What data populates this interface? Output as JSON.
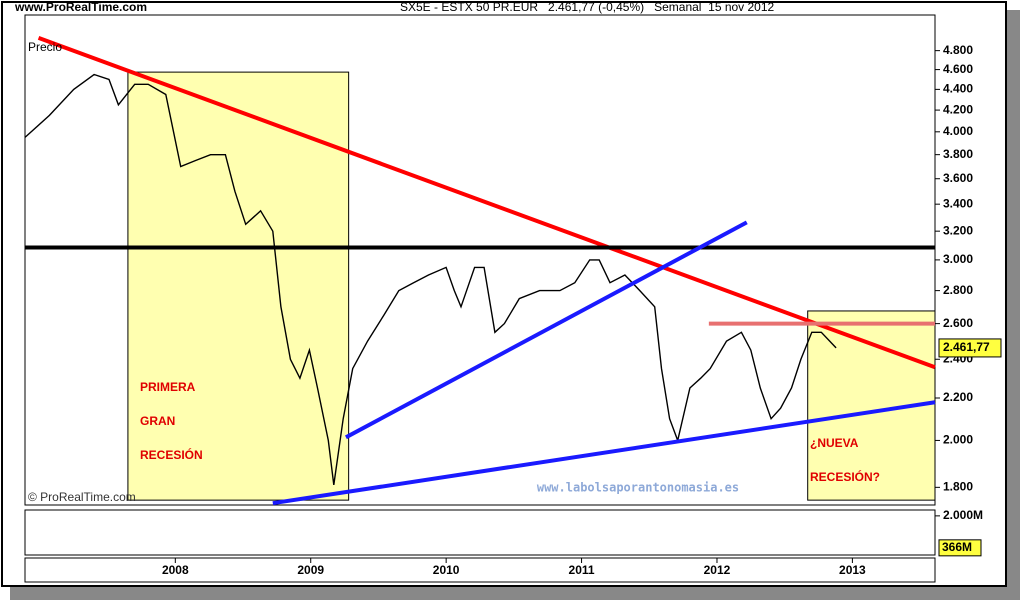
{
  "chart_data": {
    "type": "line",
    "source": "www.ProRealTime.com",
    "title": "SX5E - ESTX 50 PR.EUR   2.461,77 (-0,45%)   Semanal  15 nov 2012",
    "y_label": "Precio",
    "copyright": "© ProRealTime.com",
    "watermark": "www.labolsaporantonomasia.es",
    "log_scale": true,
    "xlim": [
      2006.89,
      2013.61
    ],
    "xticks": [
      2008,
      2009,
      2010,
      2011,
      2012,
      2013
    ],
    "ylim": [
      1730,
      5200
    ],
    "yticks": [
      {
        "value": 1800,
        "label": "1.800"
      },
      {
        "value": 2000,
        "label": "2.000"
      },
      {
        "value": 2200,
        "label": "2.200"
      },
      {
        "value": 2400,
        "label": "2.400"
      },
      {
        "value": 2600,
        "label": "2.600"
      },
      {
        "value": 2800,
        "label": "2.800"
      },
      {
        "value": 3000,
        "label": "3.000"
      },
      {
        "value": 3200,
        "label": "3.200"
      },
      {
        "value": 3400,
        "label": "3.400"
      },
      {
        "value": 3600,
        "label": "3.600"
      },
      {
        "value": 3800,
        "label": "3.800"
      },
      {
        "value": 4000,
        "label": "4.000"
      },
      {
        "value": 4200,
        "label": "4.200"
      },
      {
        "value": 4400,
        "label": "4.400"
      },
      {
        "value": 4600,
        "label": "4.600"
      },
      {
        "value": 4800,
        "label": "4.800"
      }
    ],
    "series": [
      {
        "name": "SX5E",
        "color": "#000000",
        "x": [
          2006.89,
          2007.07,
          2007.25,
          2007.4,
          2007.51,
          2007.58,
          2007.7,
          2007.8,
          2007.93,
          2008.04,
          2008.15,
          2008.26,
          2008.37,
          2008.44,
          2008.52,
          2008.63,
          2008.72,
          2008.78,
          2008.85,
          2008.92,
          2008.99,
          2009.05,
          2009.13,
          2009.17,
          2009.24,
          2009.31,
          2009.42,
          2009.54,
          2009.65,
          2009.76,
          2009.87,
          2010.0,
          2010.06,
          2010.11,
          2010.21,
          2010.28,
          2010.36,
          2010.43,
          2010.54,
          2010.69,
          2010.84,
          2010.95,
          2011.06,
          2011.13,
          2011.21,
          2011.32,
          2011.43,
          2011.54,
          2011.59,
          2011.65,
          2011.71,
          2011.8,
          2011.88,
          2011.95,
          2012.07,
          2012.18,
          2012.25,
          2012.32,
          2012.4,
          2012.47,
          2012.55,
          2012.62,
          2012.7,
          2012.77,
          2012.88
        ],
        "values": [
          3950,
          4150,
          4400,
          4550,
          4500,
          4250,
          4450,
          4450,
          4350,
          3700,
          3750,
          3800,
          3800,
          3500,
          3250,
          3350,
          3200,
          2700,
          2400,
          2300,
          2450,
          2250,
          2000,
          1810,
          2100,
          2350,
          2500,
          2650,
          2800,
          2850,
          2900,
          2950,
          2800,
          2700,
          2950,
          2950,
          2550,
          2600,
          2750,
          2800,
          2800,
          2850,
          3000,
          3000,
          2850,
          2900,
          2800,
          2700,
          2350,
          2100,
          2000,
          2250,
          2300,
          2350,
          2500,
          2550,
          2450,
          2250,
          2100,
          2150,
          2250,
          2400,
          2550,
          2550,
          2462
        ]
      }
    ],
    "last_price": {
      "value": 2461.77,
      "label": "2.461,77"
    },
    "zones": [
      {
        "color": "#ffffb0",
        "x": [
          2007.65,
          2009.28
        ],
        "y": [
          1749,
          4574
        ],
        "label": [
          "PRIMERA",
          "GRAN",
          "RECESIÓN"
        ]
      },
      {
        "color": "#ffffb0",
        "x": [
          2012.67,
          2013.61
        ],
        "y": [
          1749,
          2675
        ],
        "label": [
          "¿NUEVA",
          "RECESIÓN?"
        ]
      }
    ],
    "trendlines": [
      {
        "color": "#ff0000",
        "x": [
          2006.99,
          2013.61
        ],
        "y": [
          4940,
          2357
        ]
      },
      {
        "color": "#000000",
        "x": [
          2006.89,
          2013.61
        ],
        "y": [
          3085,
          3085
        ]
      },
      {
        "color": "#1a1aff",
        "x": [
          2009.26,
          2012.22
        ],
        "y": [
          2014,
          3264
        ]
      },
      {
        "color": "#1a1aff",
        "x": [
          2008.72,
          2013.61
        ],
        "y": [
          1737,
          2179
        ]
      },
      {
        "color": "#e87070",
        "x": [
          2011.94,
          2013.61
        ],
        "y": [
          2600,
          2600
        ]
      }
    ],
    "volume": {
      "ticks": [
        {
          "value": 2000,
          "label": "2.000M"
        }
      ],
      "ylim": [
        0,
        2300
      ],
      "last": {
        "value": 366,
        "label": "366M"
      }
    }
  }
}
